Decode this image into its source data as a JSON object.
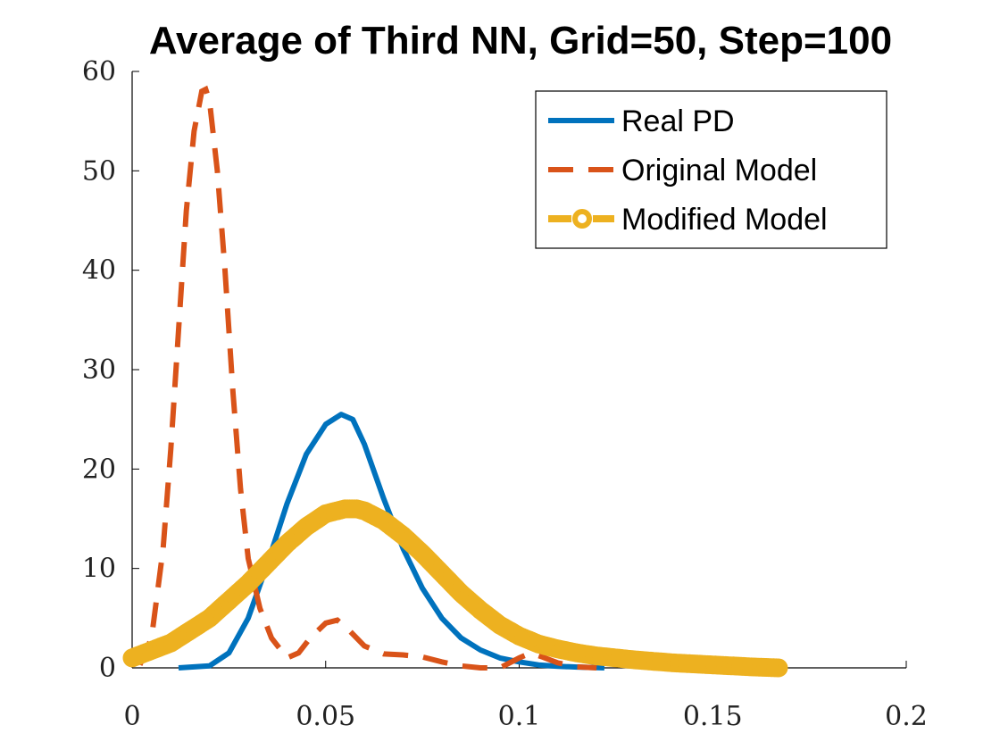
{
  "chart_data": {
    "type": "line",
    "title": "Average of Third NN, Grid=50, Step=100",
    "xlabel": "",
    "ylabel": "",
    "xlim": [
      0,
      0.2
    ],
    "ylim": [
      0,
      60
    ],
    "xticks": [
      0,
      0.05,
      0.1,
      0.15,
      0.2
    ],
    "xtick_labels": [
      "0",
      "0.05",
      "0.1",
      "0.15",
      "0.2"
    ],
    "yticks": [
      0,
      10,
      20,
      30,
      40,
      50,
      60
    ],
    "ytick_labels": [
      "0",
      "10",
      "20",
      "30",
      "40",
      "50",
      "60"
    ],
    "grid": false,
    "legend_position": "top-right",
    "series": [
      {
        "name": "Real PD",
        "style": "solid",
        "color": "#0072BD",
        "x": [
          0.012,
          0.02,
          0.025,
          0.03,
          0.035,
          0.04,
          0.045,
          0.05,
          0.054,
          0.057,
          0.06,
          0.065,
          0.07,
          0.075,
          0.08,
          0.085,
          0.09,
          0.095,
          0.1,
          0.105,
          0.11,
          0.115,
          0.12,
          0.122
        ],
        "y": [
          0.0,
          0.2,
          1.5,
          5.0,
          10.5,
          16.5,
          21.5,
          24.5,
          25.5,
          25.0,
          22.5,
          17.0,
          12.0,
          8.0,
          5.0,
          3.0,
          1.8,
          1.0,
          0.6,
          0.3,
          0.15,
          0.08,
          0.03,
          0.0
        ]
      },
      {
        "name": "Original Model",
        "style": "dashed",
        "color": "#D95319",
        "x": [
          0.002,
          0.005,
          0.008,
          0.01,
          0.012,
          0.014,
          0.016,
          0.018,
          0.019,
          0.02,
          0.022,
          0.024,
          0.026,
          0.028,
          0.03,
          0.033,
          0.036,
          0.04,
          0.043,
          0.046,
          0.05,
          0.053,
          0.056,
          0.06,
          0.065,
          0.07,
          0.075,
          0.08,
          0.085,
          0.09,
          0.095,
          0.1,
          0.103,
          0.106,
          0.11,
          0.115,
          0.12
        ],
        "y": [
          0.3,
          3.0,
          12.0,
          22.0,
          34.0,
          46.0,
          54.0,
          58.0,
          58.2,
          57.0,
          50.0,
          40.0,
          28.0,
          18.0,
          11.0,
          6.0,
          3.0,
          1.0,
          1.5,
          3.0,
          4.5,
          4.8,
          3.8,
          2.2,
          1.4,
          1.3,
          1.1,
          0.6,
          0.2,
          0.0,
          0.0,
          1.0,
          1.5,
          1.1,
          0.5,
          0.1,
          0.0
        ]
      },
      {
        "name": "Modified Model",
        "style": "dash-marker",
        "color": "#EDB120",
        "x": [
          0.0,
          0.01,
          0.02,
          0.03,
          0.04,
          0.045,
          0.05,
          0.055,
          0.058,
          0.06,
          0.065,
          0.07,
          0.075,
          0.08,
          0.085,
          0.09,
          0.095,
          0.1,
          0.105,
          0.11,
          0.115,
          0.12,
          0.13,
          0.14,
          0.15,
          0.16,
          0.167
        ],
        "y": [
          1.0,
          2.5,
          5.0,
          8.5,
          12.5,
          14.2,
          15.5,
          16.0,
          16.0,
          15.8,
          14.8,
          13.3,
          11.5,
          9.5,
          7.5,
          5.8,
          4.3,
          3.2,
          2.4,
          1.9,
          1.5,
          1.2,
          0.8,
          0.5,
          0.3,
          0.1,
          0.0
        ]
      }
    ]
  }
}
